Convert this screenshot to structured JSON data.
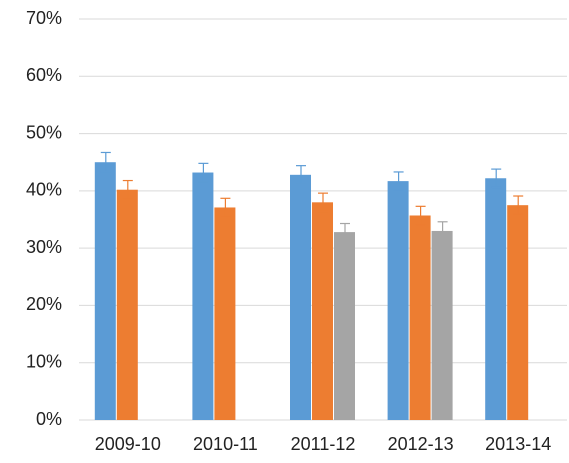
{
  "chart_data": {
    "type": "bar",
    "categories": [
      "2009-10",
      "2010-11",
      "2011-12",
      "2012-13",
      "2013-14"
    ],
    "series": [
      {
        "color": "#5b9bd5",
        "values": [
          45.0,
          43.2,
          42.8,
          41.7,
          42.2
        ],
        "errors": [
          1.7,
          1.6,
          1.6,
          1.6,
          1.6
        ]
      },
      {
        "color": "#ed7d31",
        "values": [
          40.2,
          37.1,
          38.0,
          35.7,
          37.5
        ],
        "errors": [
          1.6,
          1.6,
          1.6,
          1.6,
          1.6
        ]
      },
      {
        "color": "#a5a5a5",
        "values": [
          null,
          null,
          32.8,
          33.0,
          null
        ],
        "errors": [
          null,
          null,
          1.5,
          1.6,
          null
        ]
      }
    ],
    "ylim": [
      0,
      70
    ],
    "yticks": [
      {
        "value": 0,
        "label": "0%"
      },
      {
        "value": 10,
        "label": "10%"
      },
      {
        "value": 20,
        "label": "20%"
      },
      {
        "value": 30,
        "label": "30%"
      },
      {
        "value": 40,
        "label": "40%"
      },
      {
        "value": 50,
        "label": "50%"
      },
      {
        "value": 60,
        "label": "60%"
      },
      {
        "value": 70,
        "label": "70%"
      }
    ],
    "grid": true
  }
}
